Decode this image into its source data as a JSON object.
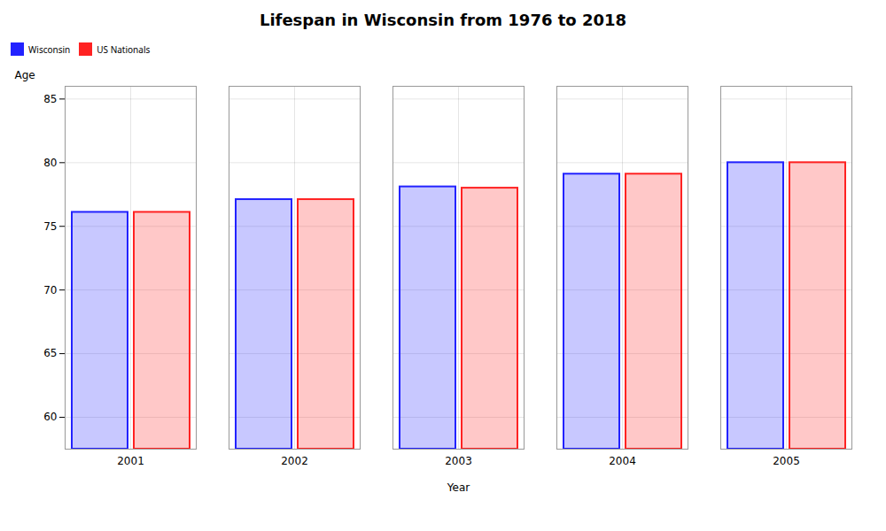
{
  "chart_data": {
    "type": "bar",
    "title": "Lifespan in Wisconsin from 1976 to 2018",
    "xlabel": "Year",
    "ylabel": "Age",
    "categories": [
      "2001",
      "2002",
      "2003",
      "2004",
      "2005"
    ],
    "series": [
      {
        "name": "Wisconsin",
        "color": "#2222ff",
        "values": [
          76.1,
          77.1,
          78.1,
          79.1,
          80.0
        ]
      },
      {
        "name": "US Nationals",
        "color": "#ff2222",
        "values": [
          76.1,
          77.1,
          78.0,
          79.1,
          80.0
        ]
      }
    ],
    "ylim": [
      57.5,
      86
    ],
    "yticks": [
      60,
      65,
      70,
      75,
      80,
      85
    ],
    "grid": true,
    "legend": "top"
  }
}
